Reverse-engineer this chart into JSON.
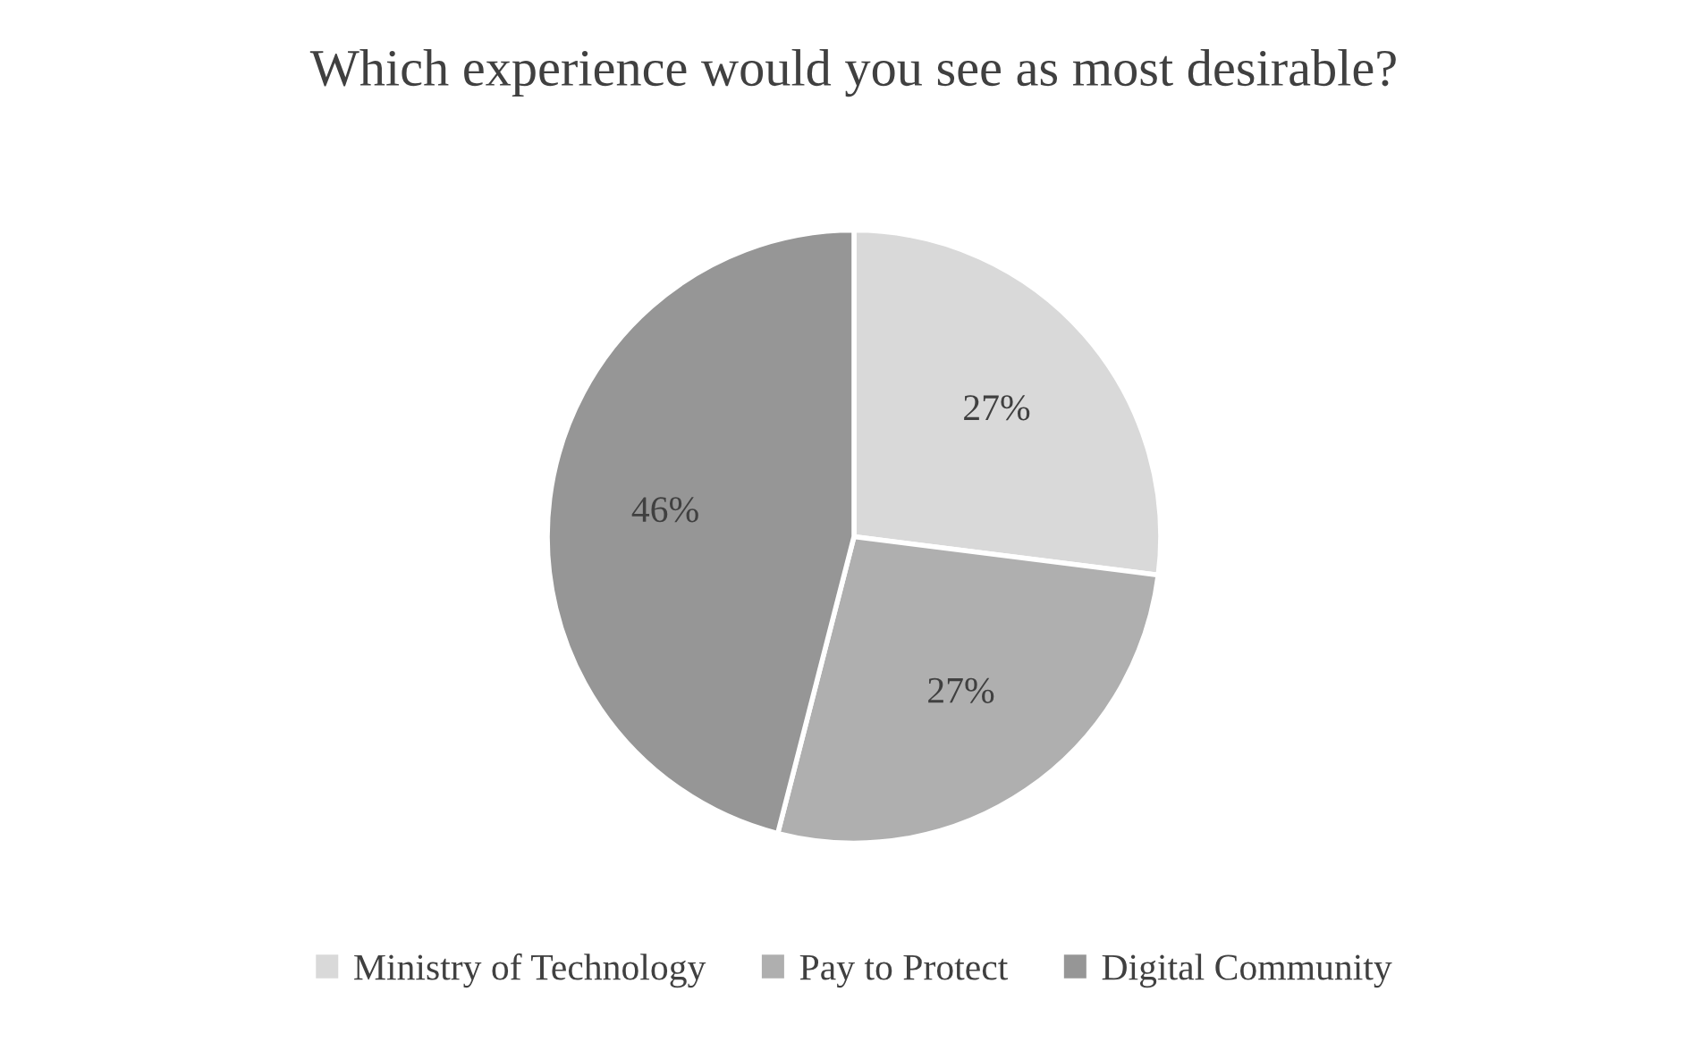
{
  "chart_data": {
    "type": "pie",
    "title": "Which experience would you see as most desirable?",
    "categories": [
      "Ministry of Technology",
      "Pay to Protect",
      "Digital Community"
    ],
    "values": [
      27,
      27,
      46
    ],
    "colors": [
      "#d9d9d9",
      "#afafaf",
      "#969696"
    ],
    "value_labels": [
      "27%",
      "27%",
      "46%"
    ],
    "legend": "bottom"
  }
}
